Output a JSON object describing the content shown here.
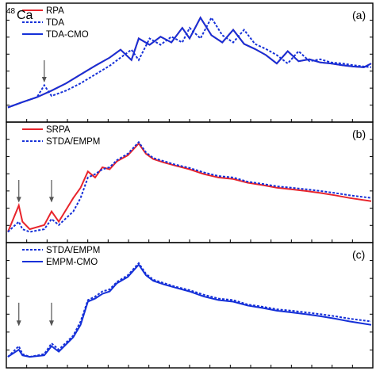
{
  "nucleus": {
    "mass": "48",
    "symbol": "Ca"
  },
  "colors": {
    "red": "#e8242b",
    "blue": "#1530d8"
  },
  "chart_data": [
    {
      "type": "line",
      "panel_label": "(a)",
      "y_scale": "log",
      "legend_placement": "top-left",
      "series": [
        {
          "name": "RPA",
          "color": "#e8242b",
          "dash": "solid",
          "x": [
            0.0,
            0.04,
            0.08,
            0.12,
            0.16,
            0.2,
            0.24,
            0.28,
            0.31,
            0.34,
            0.36,
            0.39,
            0.42,
            0.45,
            0.48,
            0.5,
            0.53,
            0.56,
            0.59,
            0.62,
            0.65,
            0.68,
            0.71,
            0.74,
            0.77,
            0.8,
            0.83,
            0.86,
            0.89,
            0.92,
            0.95,
            0.98,
            1.0
          ],
          "y": [
            0.3,
            0.5,
            0.8,
            1.5,
            3,
            7,
            16,
            35,
            75,
            28,
            220,
            120,
            260,
            150,
            600,
            220,
            1600,
            300,
            150,
            500,
            130,
            80,
            45,
            20,
            65,
            25,
            30,
            22,
            20,
            17,
            15,
            14,
            20
          ]
        },
        {
          "name": "TDA",
          "color": "#1530d8",
          "dash": "dotted",
          "x": [
            0.0,
            0.04,
            0.08,
            0.1,
            0.12,
            0.16,
            0.2,
            0.24,
            0.28,
            0.31,
            0.34,
            0.36,
            0.39,
            0.42,
            0.45,
            0.48,
            0.5,
            0.53,
            0.56,
            0.59,
            0.62,
            0.65,
            0.68,
            0.71,
            0.74,
            0.77,
            0.8,
            0.83,
            0.86,
            0.89,
            0.92,
            0.95,
            0.98,
            1.0
          ],
          "y": [
            0.3,
            0.5,
            0.8,
            2.5,
            0.9,
            1.5,
            3,
            7,
            16,
            35,
            75,
            28,
            220,
            120,
            260,
            150,
            600,
            220,
            1600,
            300,
            150,
            500,
            130,
            80,
            45,
            20,
            65,
            25,
            30,
            22,
            20,
            17,
            15,
            14
          ]
        },
        {
          "name": "TDA-CMO",
          "color": "#1530d8",
          "dash": "solid",
          "x": [
            0.0,
            0.04,
            0.08,
            0.12,
            0.16,
            0.2,
            0.24,
            0.28,
            0.31,
            0.34,
            0.36,
            0.39,
            0.42,
            0.45,
            0.48,
            0.5,
            0.53,
            0.56,
            0.59,
            0.62,
            0.65,
            0.68,
            0.71,
            0.74,
            0.77,
            0.8,
            0.83,
            0.86,
            0.89,
            0.92,
            0.95,
            0.98,
            1.0
          ],
          "y": [
            0.3,
            0.5,
            0.8,
            1.5,
            3,
            7,
            16,
            35,
            75,
            28,
            220,
            120,
            260,
            150,
            600,
            220,
            1600,
            300,
            150,
            500,
            130,
            80,
            45,
            20,
            65,
            25,
            30,
            22,
            20,
            17,
            15,
            14,
            20
          ]
        }
      ],
      "ylim": [
        0.1,
        3000
      ],
      "xlim": [
        0,
        1
      ],
      "annotations": [
        {
          "type": "arrow",
          "at_x": 0.1
        }
      ]
    },
    {
      "type": "line",
      "panel_label": "(b)",
      "y_scale": "log",
      "legend_placement": "top-left",
      "series": [
        {
          "name": "SRPA",
          "color": "#e8242b",
          "dash": "solid",
          "x": [
            0.0,
            0.03,
            0.04,
            0.06,
            0.1,
            0.12,
            0.14,
            0.18,
            0.2,
            0.22,
            0.24,
            0.26,
            0.28,
            0.3,
            0.33,
            0.36,
            0.38,
            0.4,
            0.43,
            0.46,
            0.5,
            0.54,
            0.58,
            0.62,
            0.66,
            0.7,
            0.74,
            0.78,
            0.82,
            0.86,
            0.9,
            0.94,
            1.0
          ],
          "y": [
            0.5,
            3,
            1,
            0.6,
            0.8,
            2,
            1,
            5,
            10,
            30,
            20,
            40,
            35,
            60,
            90,
            200,
            100,
            70,
            55,
            45,
            35,
            25,
            20,
            18,
            14,
            12,
            10,
            9,
            8,
            7,
            6,
            5,
            4
          ]
        },
        {
          "name": "STDA/EMPM",
          "color": "#1530d8",
          "dash": "dotted",
          "x": [
            0.0,
            0.03,
            0.04,
            0.06,
            0.1,
            0.12,
            0.14,
            0.18,
            0.2,
            0.22,
            0.24,
            0.26,
            0.28,
            0.3,
            0.33,
            0.36,
            0.38,
            0.4,
            0.43,
            0.46,
            0.5,
            0.54,
            0.58,
            0.62,
            0.66,
            0.7,
            0.74,
            0.78,
            0.82,
            0.86,
            0.9,
            0.94,
            1.0
          ],
          "y": [
            0.5,
            1,
            0.6,
            0.5,
            0.6,
            1.2,
            0.8,
            2,
            5,
            20,
            25,
            35,
            40,
            65,
            100,
            220,
            110,
            75,
            60,
            48,
            38,
            28,
            22,
            20,
            15,
            13,
            11,
            10,
            9,
            8,
            7,
            6,
            5
          ]
        }
      ],
      "ylim": [
        0.3,
        500
      ],
      "xlim": [
        0,
        1
      ],
      "annotations": [
        {
          "type": "arrow",
          "at_x": 0.03
        },
        {
          "type": "arrow",
          "at_x": 0.12
        }
      ]
    },
    {
      "type": "line",
      "panel_label": "(c)",
      "y_scale": "log",
      "legend_placement": "top-left",
      "series": [
        {
          "name": "STDA/EMPM",
          "color": "#1530d8",
          "dash": "dotted",
          "x": [
            0.0,
            0.03,
            0.04,
            0.06,
            0.1,
            0.12,
            0.14,
            0.18,
            0.2,
            0.22,
            0.24,
            0.26,
            0.28,
            0.3,
            0.33,
            0.36,
            0.38,
            0.4,
            0.43,
            0.46,
            0.5,
            0.54,
            0.58,
            0.62,
            0.66,
            0.7,
            0.74,
            0.78,
            0.82,
            0.86,
            0.9,
            0.94,
            1.0
          ],
          "y": [
            0.5,
            1,
            0.6,
            0.5,
            0.6,
            1.2,
            0.8,
            2,
            5,
            20,
            25,
            35,
            40,
            65,
            100,
            220,
            110,
            75,
            60,
            48,
            38,
            28,
            22,
            20,
            15,
            13,
            11,
            10,
            9,
            8,
            7,
            6,
            5
          ]
        },
        {
          "name": "EMPM-CMO",
          "color": "#1530d8",
          "dash": "solid",
          "x": [
            0.0,
            0.03,
            0.04,
            0.06,
            0.1,
            0.12,
            0.14,
            0.18,
            0.2,
            0.22,
            0.24,
            0.26,
            0.28,
            0.3,
            0.33,
            0.36,
            0.38,
            0.4,
            0.43,
            0.46,
            0.5,
            0.54,
            0.58,
            0.62,
            0.66,
            0.7,
            0.74,
            0.78,
            0.82,
            0.86,
            0.9,
            0.94,
            1.0
          ],
          "y": [
            0.5,
            0.8,
            0.55,
            0.5,
            0.55,
            1,
            0.7,
            1.8,
            4,
            18,
            22,
            30,
            35,
            60,
            90,
            200,
            100,
            70,
            55,
            45,
            35,
            25,
            20,
            18,
            14,
            12,
            10,
            9,
            8,
            7,
            6,
            5,
            4
          ]
        }
      ],
      "ylim": [
        0.3,
        500
      ],
      "xlim": [
        0,
        1
      ],
      "annotations": [
        {
          "type": "arrow",
          "at_x": 0.03
        },
        {
          "type": "arrow",
          "at_x": 0.12
        }
      ]
    }
  ]
}
